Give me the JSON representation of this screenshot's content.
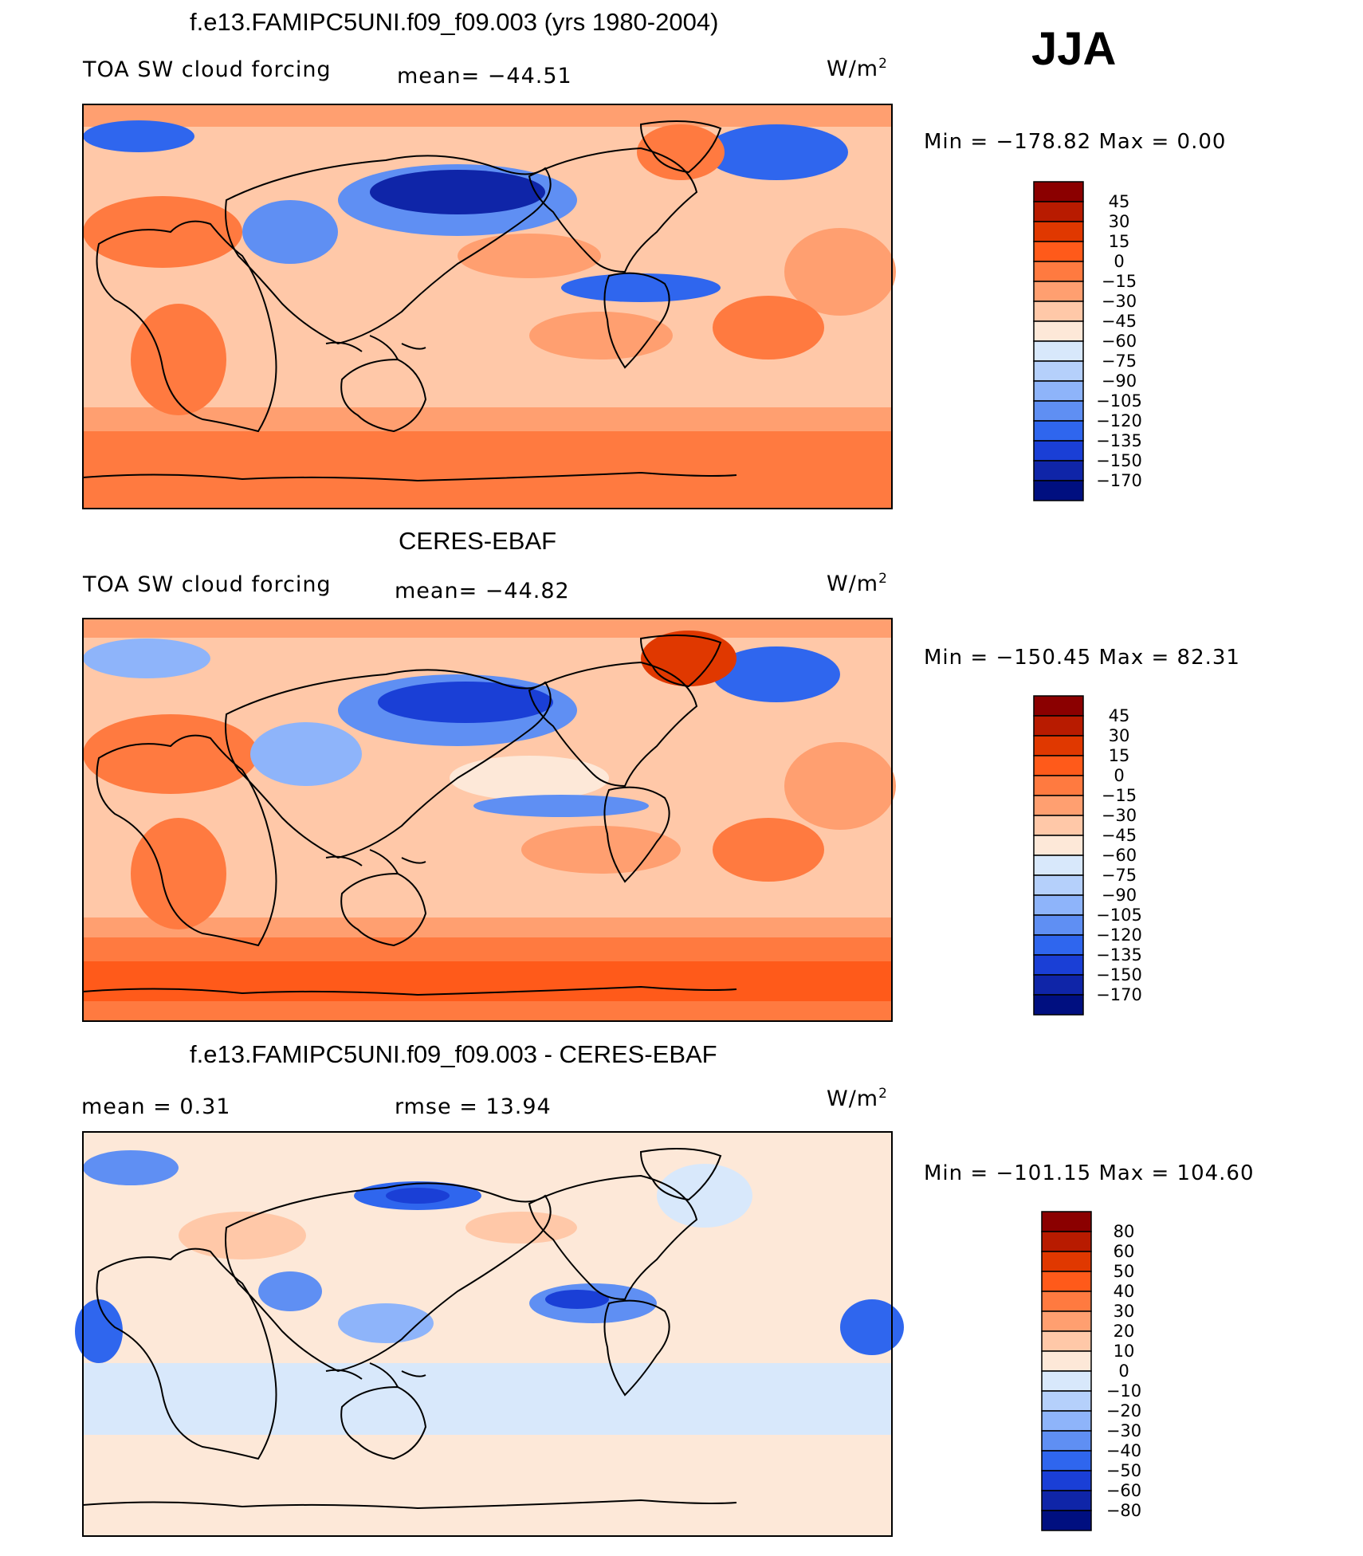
{
  "season": "JJA",
  "units": "W/m",
  "units_exp": "2",
  "panels": [
    {
      "title": "f.e13.FAMIPC5UNI.f09_f09.003 (yrs 1980-2004)",
      "left_label": "TOA SW cloud forcing",
      "mid_label": "mean= −44.51",
      "min_text": "Min  =  −178.82  Max  =     0.00",
      "colorbar_labels": [
        "45",
        "30",
        "15",
        "0",
        "−15",
        "−30",
        "−45",
        "−60",
        "−75",
        "−90",
        "−105",
        "−120",
        "−135",
        "−150",
        "−170"
      ]
    },
    {
      "title": "CERES-EBAF",
      "left_label": "TOA SW cloud forcing",
      "mid_label": "mean= −44.82",
      "min_text": "Min  =  −150.45  Max  =    82.31",
      "colorbar_labels": [
        "45",
        "30",
        "15",
        "0",
        "−15",
        "−30",
        "−45",
        "−60",
        "−75",
        "−90",
        "−105",
        "−120",
        "−135",
        "−150",
        "−170"
      ]
    },
    {
      "title": "f.e13.FAMIPC5UNI.f09_f09.003 - CERES-EBAF",
      "left_label": "mean  =     0.31",
      "mid_label": "rmse  =    13.94",
      "min_text": "Min  =  −101.15  Max  =  104.60",
      "colorbar_labels": [
        "80",
        "60",
        "50",
        "40",
        "30",
        "20",
        "10",
        "0",
        "−10",
        "−20",
        "−30",
        "−40",
        "−50",
        "−60",
        "−80"
      ]
    }
  ],
  "colors": {
    "abs_scale": [
      "#8b0000",
      "#b81b00",
      "#e03800",
      "#ff5a1a",
      "#ff7a40",
      "#ff9f70",
      "#ffc8a8",
      "#fde8d8",
      "#d8e8fb",
      "#b5d0fb",
      "#8eb4fa",
      "#5f8ff3",
      "#2f66ee",
      "#1a3fd6",
      "#0f25a8",
      "#000f80"
    ],
    "diff_scale": [
      "#8b0000",
      "#b81b00",
      "#e03800",
      "#ff5a1a",
      "#ff7a40",
      "#ff9f70",
      "#ffc8a8",
      "#fde8d8",
      "#d8e8fb",
      "#b5d0fb",
      "#8eb4fa",
      "#5f8ff3",
      "#2f66ee",
      "#1a3fd6",
      "#0f25a8",
      "#000f80"
    ]
  }
}
